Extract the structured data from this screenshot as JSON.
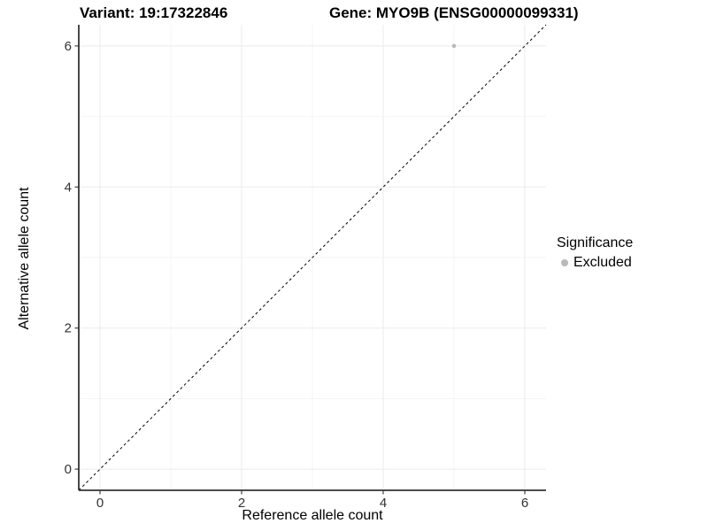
{
  "header": {
    "variant_title": "Variant: 19:17322846",
    "gene_title": "Gene: MYO9B (ENSG00000099331)"
  },
  "chart_data": {
    "type": "scatter",
    "xlabel": "Reference allele count",
    "ylabel": "Alternative allele count",
    "xlim": [
      -0.3,
      6.3
    ],
    "ylim": [
      -0.3,
      6.3
    ],
    "x_ticks": [
      0,
      2,
      4,
      6
    ],
    "y_ticks": [
      0,
      2,
      4,
      6
    ],
    "x_minor_ticks": [
      1,
      3,
      5
    ],
    "y_minor_ticks": [
      1,
      3,
      5
    ],
    "grid": true,
    "points": [
      {
        "x": 5,
        "y": 6,
        "series": "Excluded",
        "color": "#b9b9b9"
      }
    ],
    "reference_line": {
      "type": "identity",
      "slope": 1,
      "intercept": 0,
      "style": "dashed",
      "color": "#000000"
    },
    "legend": {
      "title": "Significance",
      "position": "right",
      "items": [
        {
          "label": "Excluded",
          "color": "#b9b9b9"
        }
      ]
    },
    "colors": {
      "grid_major": "#ebebeb",
      "grid_minor": "#f4f4f4",
      "axis_line": "#333333",
      "tick_mark": "#333333",
      "tick_label": "#333333",
      "background": "#ffffff"
    }
  }
}
